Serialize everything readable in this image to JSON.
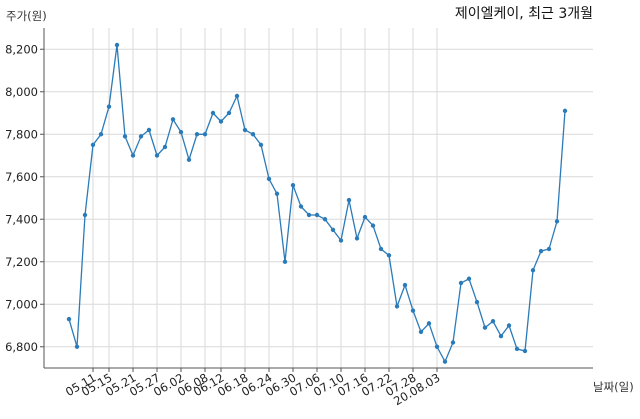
{
  "chart_data": {
    "type": "line",
    "title": "제이엘케이, 최근 3개월",
    "xlabel": "날짜(일)",
    "ylabel": "주가(원)",
    "ylim": [
      6700,
      8300
    ],
    "yticks": [
      6800,
      7000,
      7200,
      7400,
      7600,
      7800,
      8000,
      8200
    ],
    "ytick_labels": [
      "6,800",
      "7,000",
      "7,200",
      "7,400",
      "7,600",
      "7,800",
      "8,000",
      "8,200"
    ],
    "grid": true,
    "line_color": "#2b7bb9",
    "xtick_labels": [
      "05.11",
      "05.15",
      "05.21",
      "05.27",
      "06.02",
      "06.08",
      "06.12",
      "06.18",
      "06.24",
      "06.30",
      "07.06",
      "07.10",
      "07.16",
      "07.22",
      "07.28",
      "20.08.03"
    ],
    "xtick_index": [
      3,
      5,
      8,
      11,
      14,
      17,
      19,
      22,
      25,
      28,
      31,
      34,
      37,
      40,
      43,
      46
    ],
    "series": [
      {
        "values": [
          6930,
          6800,
          7420,
          7750,
          7800,
          7930,
          8220,
          7790,
          7700,
          7790,
          7820,
          7700,
          7740,
          7870,
          7810,
          7680,
          7800,
          7800,
          7900,
          7860,
          7900,
          7980,
          7820,
          7800,
          7750,
          7590,
          7520,
          7200,
          7560,
          7460,
          7420,
          7420,
          7400,
          7350,
          7300,
          7490,
          7310,
          7410,
          7370,
          7260,
          7230,
          6990,
          7090,
          6970,
          6870,
          6910,
          6800,
          6730,
          6820,
          7100,
          7120,
          7010,
          6890,
          6920,
          6850,
          6900,
          6790,
          6780,
          7160,
          7250,
          7260,
          7390,
          7910
        ]
      }
    ]
  }
}
